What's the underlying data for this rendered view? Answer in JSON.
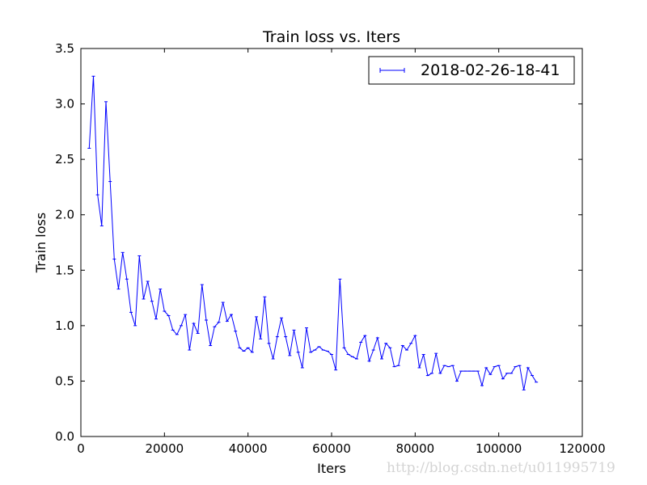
{
  "chart_data": {
    "type": "line",
    "title": "Train loss  vs. Iters",
    "xlabel": "Iters",
    "ylabel": "Train loss",
    "xlim": [
      0,
      120000
    ],
    "ylim": [
      0.0,
      3.5
    ],
    "xticks": [
      0,
      20000,
      40000,
      60000,
      80000,
      100000,
      120000
    ],
    "xtick_labels": [
      "0",
      "20000",
      "40000",
      "60000",
      "80000",
      "100000",
      "120000"
    ],
    "yticks": [
      0.0,
      0.5,
      1.0,
      1.5,
      2.0,
      2.5,
      3.0,
      3.5
    ],
    "ytick_labels": [
      "0.0",
      "0.5",
      "1.0",
      "1.5",
      "2.0",
      "2.5",
      "3.0",
      "3.5"
    ],
    "legend_position": "top-right",
    "grid": false,
    "series": [
      {
        "name": "2018-02-26-18-41",
        "color": "#0000ff",
        "x": [
          2000,
          3000,
          4000,
          5000,
          6000,
          7000,
          8000,
          9000,
          10000,
          11000,
          12000,
          13000,
          14000,
          15000,
          16000,
          17000,
          18000,
          19000,
          20000,
          21000,
          22000,
          23000,
          24000,
          25000,
          26000,
          27000,
          28000,
          29000,
          30000,
          31000,
          32000,
          33000,
          34000,
          35000,
          36000,
          37000,
          38000,
          39000,
          40000,
          41000,
          42000,
          43000,
          44000,
          45000,
          46000,
          47000,
          48000,
          49000,
          50000,
          51000,
          52000,
          53000,
          54000,
          55000,
          56000,
          57000,
          58000,
          59000,
          60000,
          61000,
          62000,
          63000,
          64000,
          65000,
          66000,
          67000,
          68000,
          69000,
          70000,
          71000,
          72000,
          73000,
          74000,
          75000,
          76000,
          77000,
          78000,
          79000,
          80000,
          81000,
          82000,
          83000,
          84000,
          85000,
          86000,
          87000,
          88000,
          89000,
          90000,
          91000,
          92000,
          93000,
          94000,
          95000,
          96000,
          97000,
          98000,
          99000,
          100000,
          101000,
          102000,
          103000,
          104000,
          105000,
          106000,
          107000,
          108000,
          109000
        ],
        "y": [
          2.6,
          3.25,
          2.18,
          1.9,
          3.02,
          2.3,
          1.6,
          1.33,
          1.66,
          1.42,
          1.12,
          1.0,
          1.63,
          1.24,
          1.4,
          1.22,
          1.06,
          1.33,
          1.13,
          1.09,
          0.96,
          0.92,
          1.0,
          1.1,
          0.78,
          1.02,
          0.93,
          1.37,
          1.05,
          0.82,
          0.99,
          1.03,
          1.21,
          1.04,
          1.1,
          0.95,
          0.8,
          0.77,
          0.8,
          0.76,
          1.08,
          0.88,
          1.26,
          0.84,
          0.7,
          0.9,
          1.07,
          0.9,
          0.73,
          0.96,
          0.76,
          0.62,
          0.98,
          0.76,
          0.78,
          0.81,
          0.78,
          0.77,
          0.74,
          0.6,
          1.42,
          0.8,
          0.74,
          0.72,
          0.7,
          0.85,
          0.91,
          0.68,
          0.78,
          0.89,
          0.7,
          0.84,
          0.8,
          0.63,
          0.64,
          0.82,
          0.78,
          0.84,
          0.91,
          0.62,
          0.74,
          0.55,
          0.57,
          0.75,
          0.57,
          0.64,
          0.63,
          0.64,
          0.5,
          0.59,
          0.59,
          0.59,
          0.59,
          0.59,
          0.46,
          0.62,
          0.56,
          0.63,
          0.64,
          0.52,
          0.57,
          0.57,
          0.63,
          0.64,
          0.42,
          0.62,
          0.55,
          0.49
        ]
      }
    ]
  },
  "watermark": "http://blog.csdn.net/u011995719"
}
